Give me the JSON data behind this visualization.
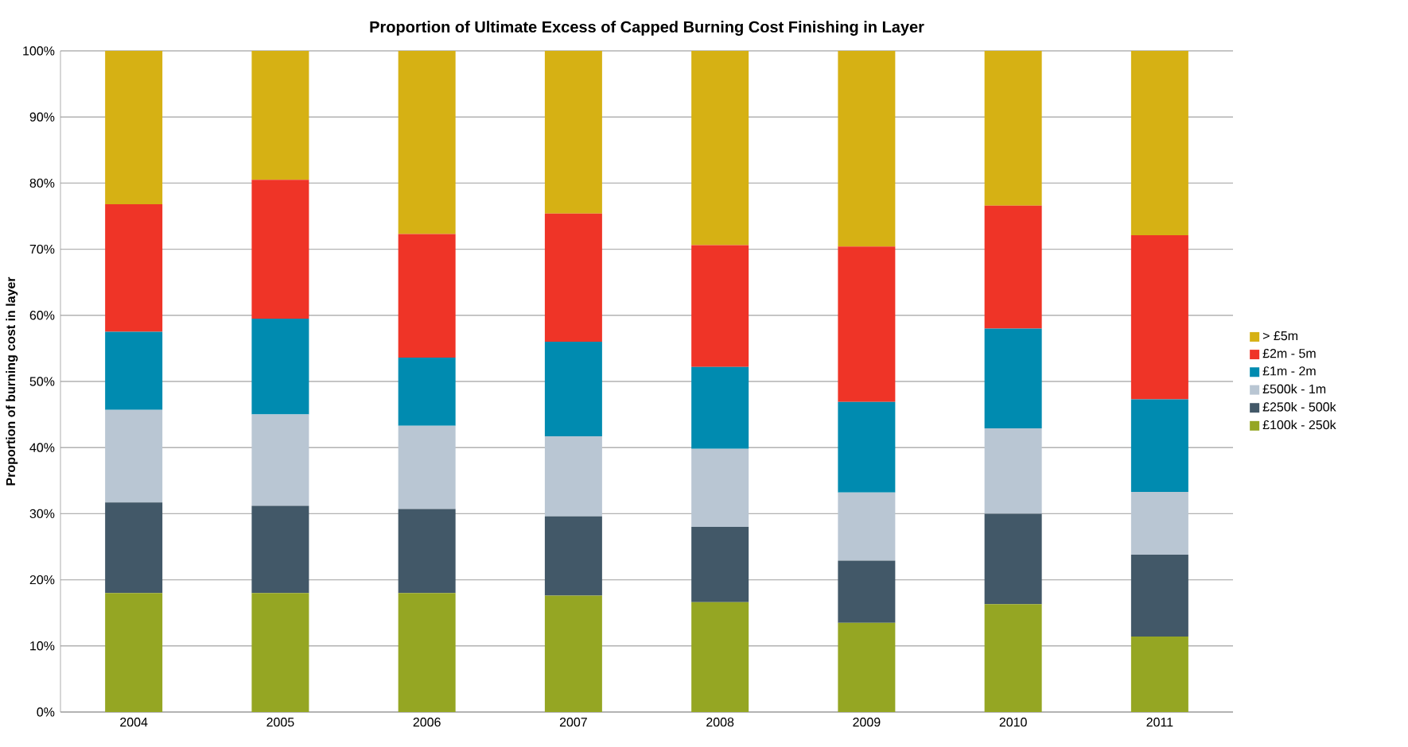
{
  "chart_data": {
    "type": "bar",
    "stacked": true,
    "title": "Proportion of Ultimate Excess of Capped Burning Cost Finishing in Layer",
    "ylabel": "Proportion of burning cost in layer",
    "categories": [
      "2004",
      "2005",
      "2006",
      "2007",
      "2008",
      "2009",
      "2010",
      "2011"
    ],
    "series": [
      {
        "name": "£100k - 250k",
        "color": "#95a623",
        "values": [
          18,
          18,
          18,
          17.6,
          16.6,
          13.5,
          16.3,
          11.4
        ]
      },
      {
        "name": "£250k - 500k",
        "color": "#425868",
        "values": [
          13.7,
          13.2,
          12.7,
          12,
          11.4,
          9.4,
          13.7,
          12.4
        ]
      },
      {
        "name": "£500k - 1m",
        "color": "#b9c6d3",
        "values": [
          14,
          13.8,
          12.6,
          12.1,
          11.8,
          10.3,
          12.9,
          9.5
        ]
      },
      {
        "name": "£1m - 2m",
        "color": "#008bb0",
        "values": [
          11.8,
          14.5,
          10.3,
          14.3,
          12.4,
          13.7,
          15.1,
          14
        ]
      },
      {
        "name": "£2m - 5m",
        "color": "#ef3427",
        "values": [
          19.3,
          21,
          18.7,
          19.4,
          18.4,
          23.5,
          18.6,
          24.8
        ]
      },
      {
        "name": "> £5m",
        "color": "#d6b114",
        "values": [
          23.2,
          19.5,
          27.7,
          24.6,
          29.4,
          29.6,
          23.4,
          27.9
        ]
      }
    ],
    "ylim": [
      0,
      100
    ],
    "yticks": [
      {
        "value": 0,
        "label": "0%"
      },
      {
        "value": 10,
        "label": "10%"
      },
      {
        "value": 20,
        "label": "20%"
      },
      {
        "value": 30,
        "label": "30%"
      },
      {
        "value": 40,
        "label": "40%"
      },
      {
        "value": 50,
        "label": "50%"
      },
      {
        "value": 60,
        "label": "60%"
      },
      {
        "value": 70,
        "label": "70%"
      },
      {
        "value": 80,
        "label": "80%"
      },
      {
        "value": 90,
        "label": "90%"
      },
      {
        "value": 100,
        "label": "100%"
      }
    ],
    "grid": "y",
    "legend": "right"
  }
}
